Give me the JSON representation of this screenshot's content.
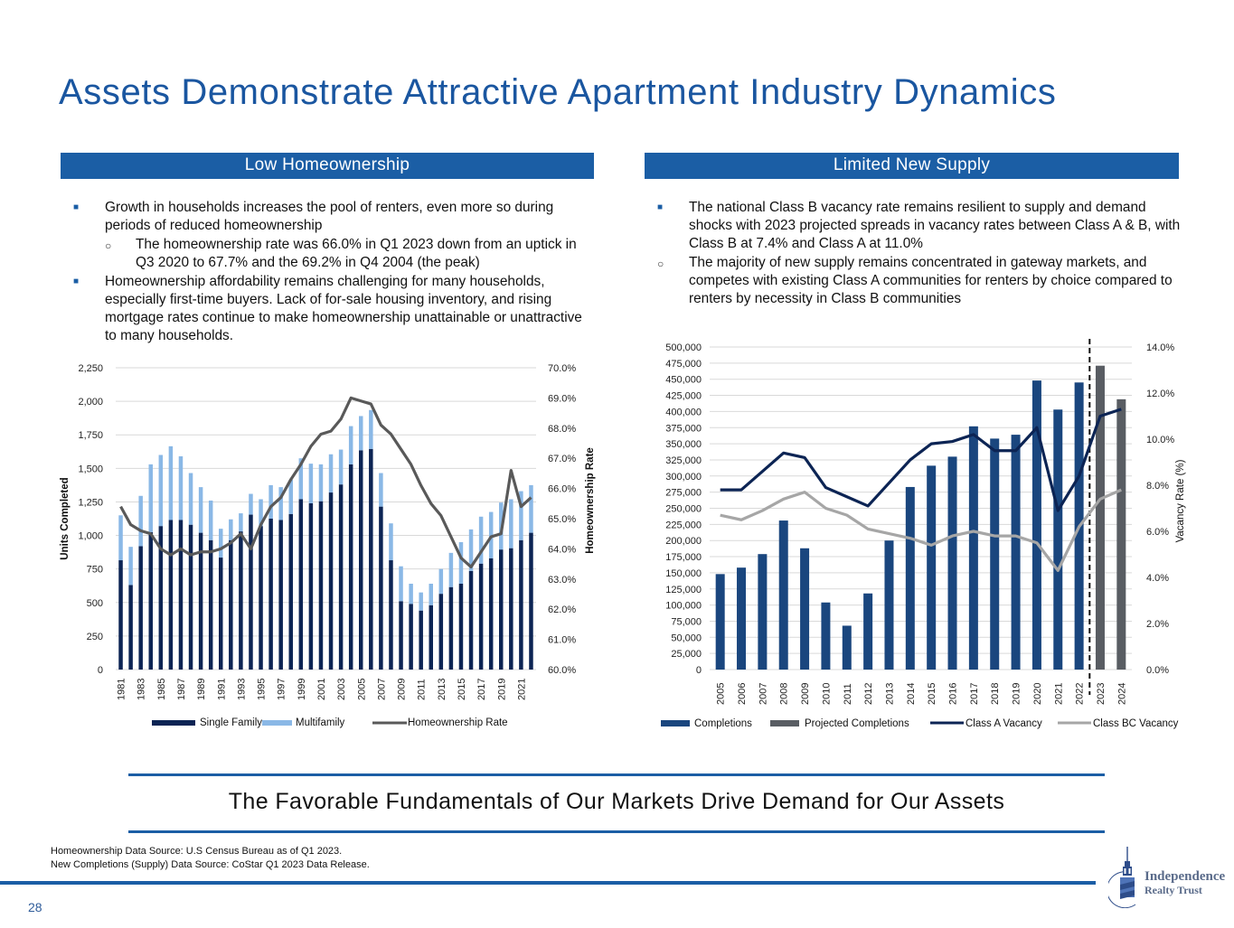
{
  "page": {
    "title": "Assets Demonstrate Attractive Apartment Industry Dynamics",
    "page_number": "28",
    "tagline": "The Favorable Fundamentals of Our Markets Drive Demand for Our Assets",
    "sources": [
      "Homeownership Data Source: U.S Census Bureau as of Q1 2023.",
      "New Completions (Supply) Data Source: CoStar Q1 2023 Data Release."
    ],
    "logo": {
      "line1": "Independence",
      "line2": "Realty Trust",
      "icon": "tower-icon"
    },
    "colors": {
      "brand_blue": "#1b5ea5",
      "title_blue": "#1a56a0",
      "dark_navy": "#0c2454",
      "light_blue": "#8ab8e6",
      "gray_line": "#595959",
      "projected_gray": "#595d63",
      "bc_gray": "#a6a6a6"
    }
  },
  "left": {
    "header": "Low Homeownership",
    "bullets": [
      {
        "level": 1,
        "marker": "square",
        "text": "Growth in households increases the pool of renters, even more so during periods of reduced homeownership"
      },
      {
        "level": 2,
        "marker": "circle",
        "text": "The homeownership rate was 66.0% in Q1 2023 down from an uptick in Q3 2020 to 67.7% and the 69.2% in Q4 2004 (the peak)"
      },
      {
        "level": 1,
        "marker": "square",
        "text": "Homeownership affordability remains challenging for many households, especially first-time buyers. Lack of for-sale housing inventory, and rising mortgage rates continue to make homeownership unattainable or unattractive to many households."
      }
    ]
  },
  "right": {
    "header": "Limited New Supply",
    "bullets": [
      {
        "level": 1,
        "marker": "square",
        "text": "The national Class B vacancy rate remains resilient to supply and demand shocks with 2023 projected spreads in vacancy rates between Class A & B, with Class B at 7.4% and Class A at 11.0%"
      },
      {
        "level": 1,
        "marker": "circle",
        "text": "The majority of new supply remains concentrated in gateway markets, and competes with existing Class A communities for renters by choice compared to renters by necessity in Class B communities"
      }
    ]
  },
  "chart_data": [
    {
      "type": "bar",
      "stacked": true,
      "title": "",
      "ylabel": "Units Completed",
      "y2label": "Homeownership Rate",
      "ylim": [
        0,
        2250
      ],
      "yticks": [
        "0",
        "250",
        "500",
        "750",
        "1,000",
        "1,250",
        "1,500",
        "1,750",
        "2,000",
        "2,250"
      ],
      "y2lim": [
        60.0,
        70.0
      ],
      "y2ticks": [
        "60.0%",
        "61.0%",
        "62.0%",
        "63.0%",
        "64.0%",
        "65.0%",
        "66.0%",
        "67.0%",
        "68.0%",
        "69.0%",
        "70.0%"
      ],
      "grid": true,
      "legend": "bottom",
      "categories": [
        "1981",
        "1982",
        "1983",
        "1984",
        "1985",
        "1986",
        "1987",
        "1988",
        "1989",
        "1990",
        "1991",
        "1992",
        "1993",
        "1994",
        "1995",
        "1996",
        "1997",
        "1998",
        "1999",
        "2000",
        "2001",
        "2002",
        "2003",
        "2004",
        "2005",
        "2006",
        "2007",
        "2008",
        "2009",
        "2010",
        "2011",
        "2012",
        "2013",
        "2014",
        "2015",
        "2016",
        "2017",
        "2018",
        "2019",
        "2020",
        "2021",
        "2022"
      ],
      "xtick_labels_shown": [
        "1981",
        "1983",
        "1985",
        "1987",
        "1989",
        "1991",
        "1993",
        "1995",
        "1997",
        "1999",
        "2001",
        "2003",
        "2005",
        "2007",
        "2009",
        "2011",
        "2013",
        "2015",
        "2017",
        "2019",
        "2021"
      ],
      "series": [
        {
          "name": "Single Family",
          "kind": "bar",
          "axis": "left",
          "color": "#0c2454",
          "values": [
            815,
            630,
            920,
            1025,
            1070,
            1115,
            1115,
            1080,
            1020,
            965,
            835,
            965,
            1030,
            1155,
            1070,
            1125,
            1115,
            1160,
            1270,
            1240,
            1255,
            1320,
            1380,
            1530,
            1635,
            1645,
            1215,
            815,
            510,
            490,
            440,
            480,
            565,
            615,
            640,
            735,
            790,
            830,
            895,
            905,
            965,
            1020
          ]
        },
        {
          "name": "Multifamily",
          "kind": "bar",
          "axis": "left",
          "color": "#8ab8e6",
          "values": [
            335,
            285,
            375,
            505,
            530,
            550,
            475,
            385,
            340,
            295,
            215,
            155,
            135,
            155,
            200,
            250,
            245,
            255,
            305,
            295,
            275,
            285,
            260,
            285,
            255,
            290,
            250,
            275,
            260,
            150,
            135,
            160,
            185,
            255,
            310,
            310,
            350,
            345,
            350,
            365,
            365,
            355
          ]
        },
        {
          "name": "Homeownership Rate",
          "kind": "line",
          "axis": "right",
          "color": "#595959",
          "values": [
            65.4,
            64.8,
            64.6,
            64.5,
            64.0,
            63.8,
            64.0,
            63.8,
            63.9,
            63.9,
            64.0,
            64.2,
            64.5,
            64.0,
            64.8,
            65.4,
            65.7,
            66.3,
            66.8,
            67.4,
            67.8,
            67.9,
            68.3,
            69.0,
            68.9,
            68.8,
            68.1,
            67.8,
            67.3,
            66.8,
            66.1,
            65.5,
            65.1,
            64.4,
            63.7,
            63.4,
            63.9,
            64.4,
            64.5,
            66.6,
            65.4,
            65.7
          ]
        }
      ]
    },
    {
      "type": "bar",
      "title": "",
      "ylabel": "",
      "y2label": "Vacancy Rate (%)",
      "ylim": [
        0,
        500000
      ],
      "yticks": [
        "0",
        "25,000",
        "50,000",
        "75,000",
        "100,000",
        "125,000",
        "150,000",
        "175,000",
        "200,000",
        "225,000",
        "250,000",
        "275,000",
        "300,000",
        "325,000",
        "350,000",
        "375,000",
        "400,000",
        "425,000",
        "450,000",
        "475,000",
        "500,000"
      ],
      "y2lim": [
        0.0,
        14.0
      ],
      "y2ticks": [
        "0.0%",
        "2.0%",
        "4.0%",
        "6.0%",
        "8.0%",
        "10.0%",
        "12.0%",
        "14.0%"
      ],
      "grid": true,
      "legend": "bottom",
      "projection_divider_after": "2022",
      "categories": [
        "2005",
        "2006",
        "2007",
        "2008",
        "2009",
        "2010",
        "2011",
        "2012",
        "2013",
        "2014",
        "2015",
        "2016",
        "2017",
        "2018",
        "2019",
        "2020",
        "2021",
        "2022",
        "2023",
        "2024"
      ],
      "series": [
        {
          "name": "Completions",
          "kind": "bar",
          "axis": "left",
          "color": "#1a467e",
          "values": [
            148000,
            158000,
            179000,
            231000,
            188000,
            104000,
            68000,
            118000,
            200000,
            283000,
            316000,
            330000,
            377000,
            358000,
            364000,
            448000,
            403000,
            445000,
            null,
            null
          ]
        },
        {
          "name": "Projected Completions",
          "kind": "bar",
          "axis": "left",
          "color": "#595d63",
          "values": [
            null,
            null,
            null,
            null,
            null,
            null,
            null,
            null,
            null,
            null,
            null,
            null,
            null,
            null,
            null,
            null,
            null,
            null,
            471000,
            419000
          ]
        },
        {
          "name": "Class A Vacancy",
          "kind": "line",
          "axis": "right",
          "color": "#0c2454",
          "values": [
            7.8,
            7.8,
            8.6,
            9.4,
            9.2,
            7.9,
            7.5,
            7.1,
            8.1,
            9.1,
            9.8,
            9.9,
            10.2,
            9.5,
            9.5,
            10.5,
            6.9,
            8.4,
            11.0,
            11.3
          ]
        },
        {
          "name": "Class BC Vacancy",
          "kind": "line",
          "axis": "right",
          "color": "#a6a6a6",
          "values": [
            6.7,
            6.5,
            6.9,
            7.4,
            7.7,
            7.0,
            6.7,
            6.1,
            5.9,
            5.7,
            5.4,
            5.8,
            6.0,
            5.8,
            5.8,
            5.5,
            4.3,
            6.2,
            7.4,
            7.8
          ]
        }
      ]
    }
  ]
}
